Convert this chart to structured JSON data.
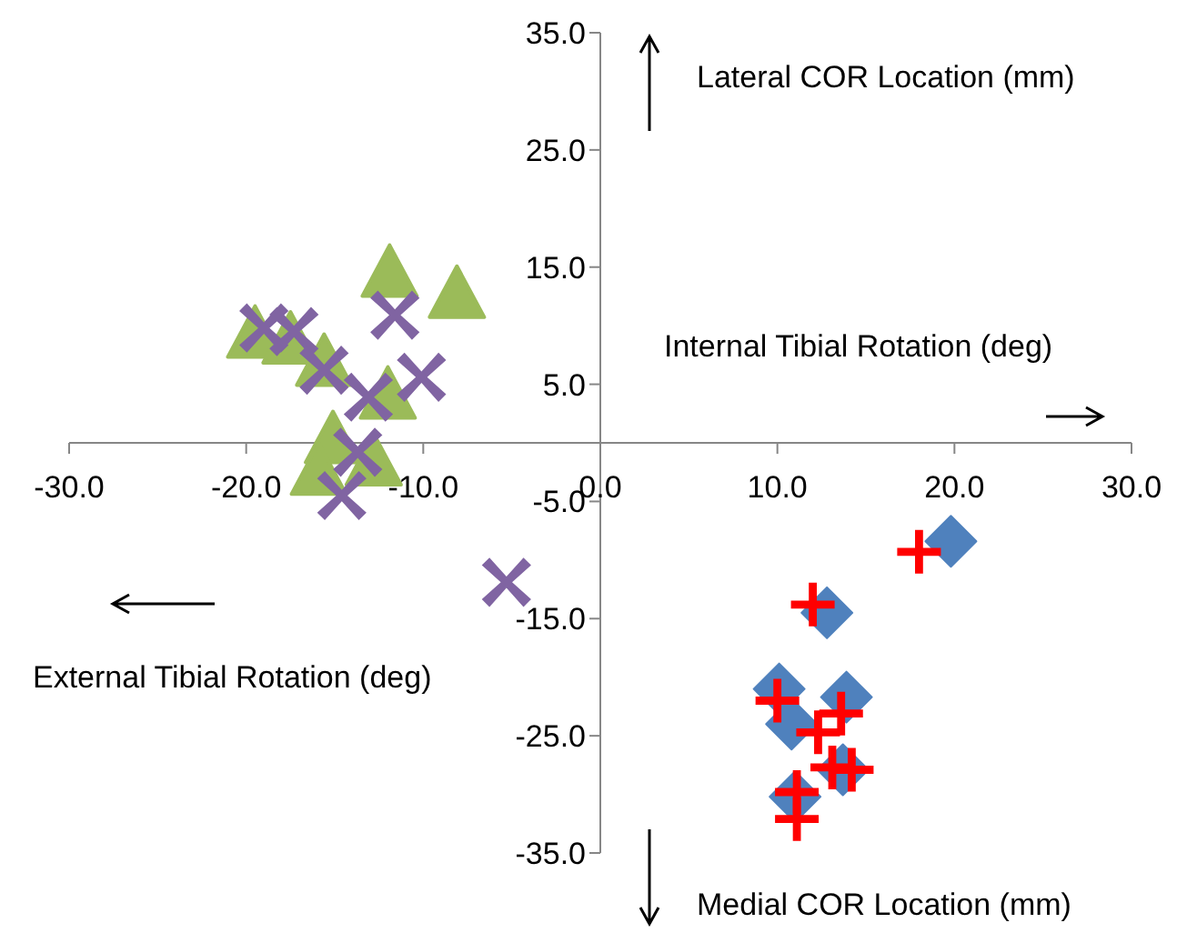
{
  "chart_data": {
    "type": "scatter",
    "xlim": [
      -30,
      30
    ],
    "xticks": [
      {
        "value": -30,
        "label": "-30.0"
      },
      {
        "value": -20,
        "label": "-20.0"
      },
      {
        "value": -10,
        "label": "-10.0"
      },
      {
        "value": 0,
        "label": "0.0"
      },
      {
        "value": 10,
        "label": "10.0"
      },
      {
        "value": 20,
        "label": "20.0"
      },
      {
        "value": 30,
        "label": "30.0"
      }
    ],
    "ylim": [
      -35,
      35
    ],
    "yticks": [
      {
        "value": -35,
        "label": "-35.0"
      },
      {
        "value": -25,
        "label": "-25.0"
      },
      {
        "value": -15,
        "label": "-15.0"
      },
      {
        "value": -5,
        "label": "-5.0"
      },
      {
        "value": 5,
        "label": "5.0"
      },
      {
        "value": 15,
        "label": "15.0"
      },
      {
        "value": 25,
        "label": "25.0"
      },
      {
        "value": 35,
        "label": "35.0"
      }
    ],
    "grid": false,
    "legend": false,
    "annotations": [
      "Lateral COR Location (mm)",
      "Internal Tibial Rotation (deg)",
      "External Tibial Rotation (deg)",
      "Medial COR Location (mm)"
    ],
    "series": [
      {
        "color": "#4f81bd",
        "marker": "diamond",
        "x": [
          19.8,
          12.8,
          10.1,
          13.9,
          10.8,
          13.7,
          11.0
        ],
        "values": [
          -8.4,
          -14.5,
          -21.0,
          -21.7,
          -24.0,
          -27.9,
          -30.2
        ]
      },
      {
        "color": "#ff0000",
        "marker": "cross",
        "x": [
          18.0,
          12.0,
          10.0,
          13.6,
          12.3,
          14.2,
          13.1,
          11.1,
          11.1
        ],
        "values": [
          -9.3,
          -13.8,
          -22.0,
          -23.1,
          -24.7,
          -27.9,
          -27.7,
          -29.8,
          -32.1
        ]
      },
      {
        "color": "#9bbb59",
        "marker": "triangle",
        "x": [
          -11.9,
          -8.1,
          -19.5,
          -17.5,
          -15.6,
          -12.0,
          -15.1,
          -15.9,
          -12.8
        ],
        "values": [
          14.7,
          12.9,
          9.5,
          9.0,
          7.1,
          4.3,
          0.5,
          -2.2,
          -1.4
        ]
      },
      {
        "color": "#8064a2",
        "marker": "x",
        "x": [
          -19.0,
          -17.3,
          -15.6,
          -11.6,
          -10.1,
          -13.1,
          -13.7,
          -14.6,
          -5.3
        ],
        "values": [
          9.8,
          9.5,
          6.2,
          10.9,
          5.6,
          3.9,
          -0.8,
          -4.5,
          -11.9
        ]
      }
    ]
  }
}
